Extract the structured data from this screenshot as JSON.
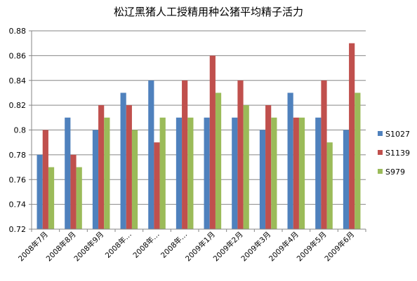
{
  "chart_data": {
    "type": "bar",
    "title": "松辽黑猪人工授精用种公猪平均精子活力",
    "categories": [
      "2008年7月",
      "2008年8月",
      "2008年9月",
      "2008年…",
      "2008年…",
      "2008年…",
      "2009年1月",
      "2009年2月",
      "2009年3月",
      "2009年4月",
      "2009年5月",
      "2009年6月"
    ],
    "series": [
      {
        "name": "S1027",
        "color": "#4F81BD",
        "values": [
          0.78,
          0.81,
          0.8,
          0.83,
          0.84,
          0.81,
          0.81,
          0.81,
          0.8,
          0.83,
          0.81,
          0.8
        ]
      },
      {
        "name": "S1139",
        "color": "#C0504D",
        "values": [
          0.8,
          0.78,
          0.82,
          0.82,
          0.79,
          0.84,
          0.86,
          0.84,
          0.82,
          0.81,
          0.84,
          0.87
        ]
      },
      {
        "name": "S979",
        "color": "#9BBB59",
        "values": [
          0.77,
          0.77,
          0.81,
          0.8,
          0.81,
          0.81,
          0.83,
          0.82,
          0.81,
          0.81,
          0.79,
          0.83
        ]
      }
    ],
    "yticks": [
      "0.72",
      "0.74",
      "0.76",
      "0.78",
      "0.8",
      "0.82",
      "0.84",
      "0.86",
      "0.88"
    ],
    "ylim": [
      0.72,
      0.88
    ],
    "grid": true,
    "legend_position": "right"
  }
}
